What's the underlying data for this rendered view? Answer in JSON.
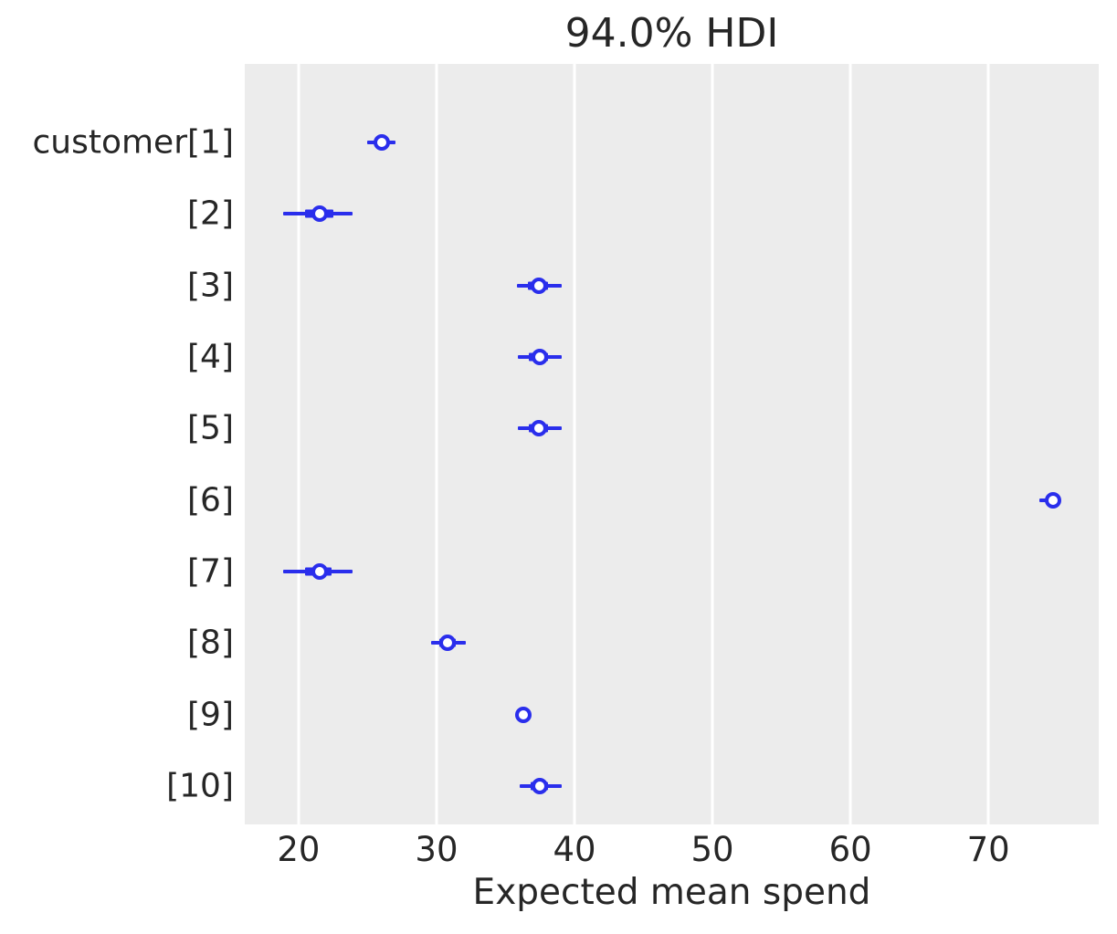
{
  "chart_data": {
    "type": "scatter",
    "variant": "forest-plot-hdi-intervals",
    "title": "94.0% HDI",
    "xlabel": "Expected mean spend",
    "ylabel": "",
    "xlim": [
      16.1,
      78.0
    ],
    "xticks": [
      20,
      30,
      40,
      50,
      60,
      70
    ],
    "xtick_labels": [
      "20",
      "30",
      "40",
      "50",
      "60",
      "70"
    ],
    "grid": {
      "axis": "x",
      "style": "white-lines-on-gray-panel"
    },
    "legend": false,
    "rows": [
      {
        "label": "customer[1]",
        "median": 26.0,
        "hdi": [
          25.0,
          27.0
        ],
        "quartiles": [
          25.6,
          26.4
        ]
      },
      {
        "label": "[2]",
        "median": 21.5,
        "hdi": [
          18.9,
          23.9
        ],
        "quartiles": [
          20.5,
          22.5
        ]
      },
      {
        "label": "[3]",
        "median": 37.4,
        "hdi": [
          35.8,
          39.1
        ],
        "quartiles": [
          36.6,
          38.1
        ]
      },
      {
        "label": "[4]",
        "median": 37.5,
        "hdi": [
          35.9,
          39.1
        ],
        "quartiles": [
          36.7,
          38.1
        ]
      },
      {
        "label": "[5]",
        "median": 37.4,
        "hdi": [
          35.9,
          39.1
        ],
        "quartiles": [
          36.7,
          38.1
        ]
      },
      {
        "label": "[6]",
        "median": 74.7,
        "hdi": [
          73.7,
          74.9
        ],
        "quartiles": [
          74.3,
          74.8
        ]
      },
      {
        "label": "[7]",
        "median": 21.5,
        "hdi": [
          18.9,
          23.9
        ],
        "quartiles": [
          20.5,
          22.4
        ]
      },
      {
        "label": "[8]",
        "median": 30.8,
        "hdi": [
          29.6,
          32.1
        ],
        "quartiles": [
          30.2,
          31.4
        ]
      },
      {
        "label": "[9]",
        "median": 36.3,
        "hdi": [
          36.0,
          36.6
        ],
        "quartiles": [
          36.1,
          36.5
        ]
      },
      {
        "label": "[10]",
        "median": 37.5,
        "hdi": [
          36.0,
          39.1
        ],
        "quartiles": [
          36.8,
          38.1
        ]
      }
    ],
    "colors": {
      "interval": "#2a2eec",
      "marker_edge": "#2a2eec",
      "marker_face": "#ffffff",
      "axes_background": "#ececec",
      "gridline": "#ffffff",
      "text": "#262626",
      "figure_background": "#ffffff"
    }
  }
}
